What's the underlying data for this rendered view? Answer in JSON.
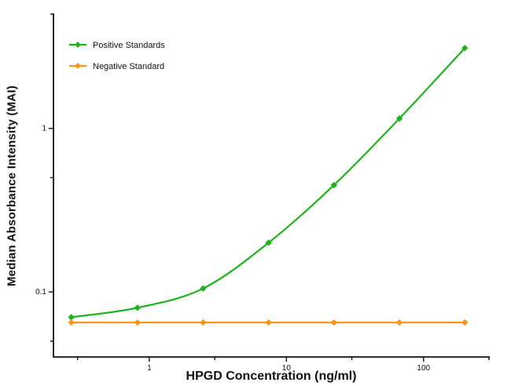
{
  "chart_data": {
    "type": "line",
    "title": "",
    "xlabel": "HPGD Concentration (ng/ml)",
    "ylabel": "Median Absorbance Intensity (MAI)",
    "x_scale": "log",
    "y_scale": "log",
    "xlim": [
      0.2,
      300
    ],
    "ylim": [
      0.04,
      5
    ],
    "grid": false,
    "legend_position": "top-left",
    "x_ticks": [
      {
        "value": 1,
        "label": "1"
      },
      {
        "value": 10,
        "label": "10"
      },
      {
        "value": 100,
        "label": "100"
      }
    ],
    "x_minor_ticks": [
      0.3,
      3,
      30,
      300
    ],
    "y_ticks": [
      {
        "value": 0.1,
        "label": "0.1"
      },
      {
        "value": 1,
        "label": "1"
      }
    ],
    "y_minor_ticks": [
      0.05,
      0.5,
      5
    ],
    "series": [
      {
        "name": "Positive Standards",
        "color": "#1DB31D",
        "marker": "diamond",
        "x": [
          0.27,
          0.82,
          2.47,
          7.41,
          22.2,
          66.7,
          200
        ],
        "y": [
          0.07,
          0.08,
          0.105,
          0.2,
          0.45,
          1.15,
          3.1
        ]
      },
      {
        "name": "Negative Standard",
        "color": "#F7941E",
        "marker": "diamond",
        "x": [
          0.27,
          0.82,
          2.47,
          7.41,
          22.2,
          66.7,
          200
        ],
        "y": [
          0.065,
          0.065,
          0.065,
          0.065,
          0.065,
          0.065,
          0.065
        ]
      }
    ]
  }
}
